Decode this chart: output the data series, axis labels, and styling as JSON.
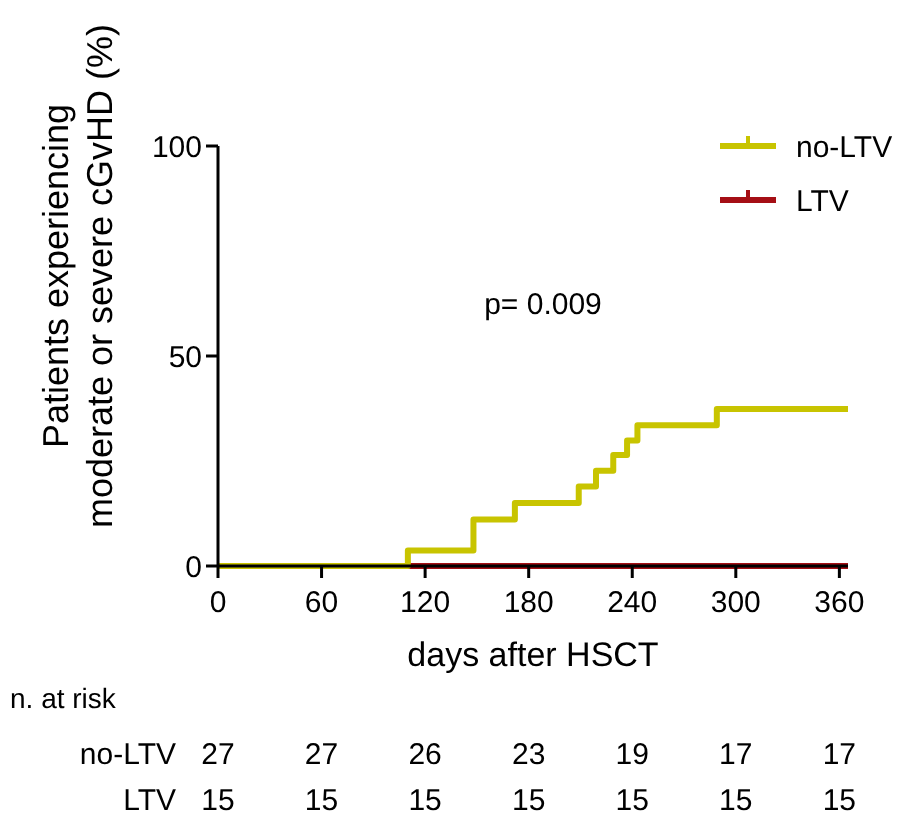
{
  "chart_data": {
    "type": "step",
    "xlabel": "days after HSCT",
    "ylabel": "Patients experiencing\nmoderate or severe cGvHD (%)",
    "xlim": [
      0,
      365
    ],
    "xticks": [
      0,
      60,
      120,
      180,
      240,
      300,
      360
    ],
    "ylim": [
      0,
      100
    ],
    "yticks": [
      0,
      50,
      100
    ],
    "grid": false,
    "legend": "top right",
    "series": [
      {
        "name": "no-LTV",
        "color": "#c8c400",
        "x": [
          0,
          110,
          148,
          172,
          209,
          219,
          229,
          237,
          243,
          289,
          365
        ],
        "values": [
          0,
          3.7,
          11.1,
          15,
          18.9,
          22.7,
          26.4,
          29.9,
          33.5,
          37.4,
          37.4
        ]
      },
      {
        "name": "LTV",
        "color": "#a50f15",
        "x": [
          0,
          365
        ],
        "values": [
          0,
          0
        ]
      }
    ],
    "annotations": [
      "p= 0.009",
      "n. at risk",
      "no-LTV",
      "27",
      "27",
      "26",
      "23",
      "19",
      "17",
      "17",
      "LTV",
      "15",
      "15",
      "15",
      "15",
      "15",
      "15",
      "15"
    ]
  }
}
